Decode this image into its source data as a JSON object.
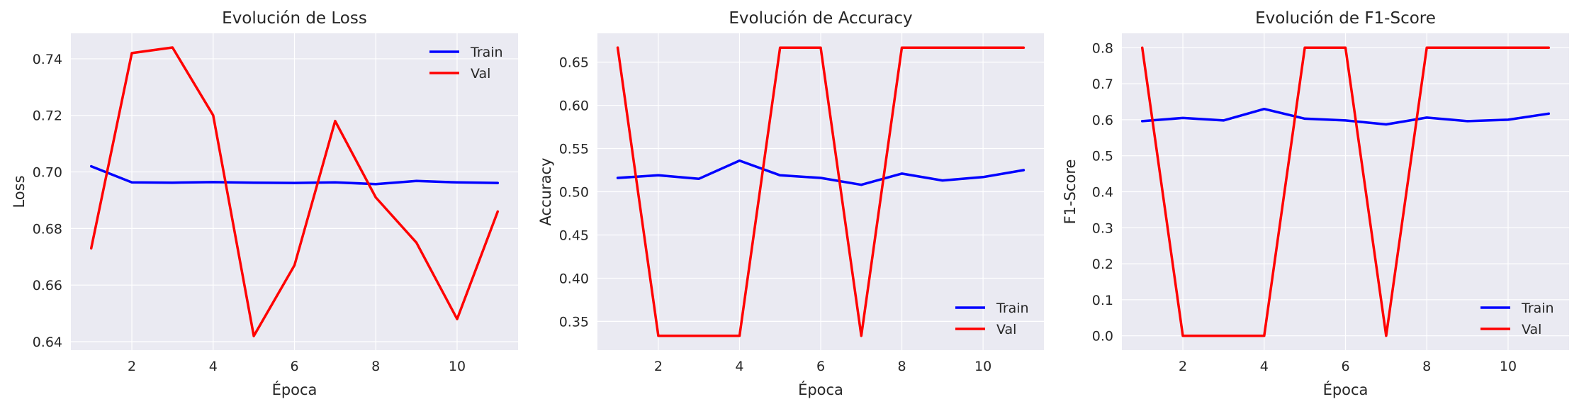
{
  "chart_data": [
    {
      "type": "line",
      "title": "Evolución de Loss",
      "xlabel": "Época",
      "ylabel": "Loss",
      "x": [
        1,
        2,
        3,
        4,
        5,
        6,
        7,
        8,
        9,
        10,
        11
      ],
      "xlim": [
        0.5,
        11.5
      ],
      "ylim": [
        0.637,
        0.749
      ],
      "xticks": [
        2,
        4,
        6,
        8,
        10
      ],
      "yticks": [
        0.64,
        0.66,
        0.68,
        0.7,
        0.72,
        0.74
      ],
      "ytick_labels": [
        "0.64",
        "0.66",
        "0.68",
        "0.70",
        "0.72",
        "0.74"
      ],
      "legend_position": "top-right",
      "grid": true,
      "series": [
        {
          "name": "Train",
          "color": "#0000ff",
          "values": [
            0.702,
            0.6963,
            0.6962,
            0.6964,
            0.6962,
            0.6961,
            0.6963,
            0.6957,
            0.6968,
            0.6963,
            0.6961
          ]
        },
        {
          "name": "Val",
          "color": "#ff0000",
          "values": [
            0.673,
            0.742,
            0.744,
            0.72,
            0.642,
            0.667,
            0.718,
            0.691,
            0.675,
            0.648,
            0.686
          ]
        }
      ]
    },
    {
      "type": "line",
      "title": "Evolución de Accuracy",
      "xlabel": "Época",
      "ylabel": "Accuracy",
      "x": [
        1,
        2,
        3,
        4,
        5,
        6,
        7,
        8,
        9,
        10,
        11
      ],
      "xlim": [
        0.5,
        11.5
      ],
      "ylim": [
        0.3167,
        0.6833
      ],
      "xticks": [
        2,
        4,
        6,
        8,
        10
      ],
      "yticks": [
        0.35,
        0.4,
        0.45,
        0.5,
        0.55,
        0.6,
        0.65
      ],
      "ytick_labels": [
        "0.35",
        "0.40",
        "0.45",
        "0.50",
        "0.55",
        "0.60",
        "0.65"
      ],
      "legend_position": "bottom-right",
      "grid": true,
      "series": [
        {
          "name": "Train",
          "color": "#0000ff",
          "values": [
            0.516,
            0.519,
            0.515,
            0.536,
            0.519,
            0.516,
            0.508,
            0.521,
            0.513,
            0.517,
            0.525
          ]
        },
        {
          "name": "Val",
          "color": "#ff0000",
          "values": [
            0.6667,
            0.3333,
            0.3333,
            0.3333,
            0.6667,
            0.6667,
            0.3333,
            0.6667,
            0.6667,
            0.6667,
            0.6667
          ]
        }
      ]
    },
    {
      "type": "line",
      "title": "Evolución de F1-Score",
      "xlabel": "Época",
      "ylabel": "F1-Score",
      "x": [
        1,
        2,
        3,
        4,
        5,
        6,
        7,
        8,
        9,
        10,
        11
      ],
      "xlim": [
        0.5,
        11.5
      ],
      "ylim": [
        -0.04,
        0.84
      ],
      "xticks": [
        2,
        4,
        6,
        8,
        10
      ],
      "yticks": [
        0.0,
        0.1,
        0.2,
        0.3,
        0.4,
        0.5,
        0.6,
        0.7,
        0.8
      ],
      "ytick_labels": [
        "0.0",
        "0.1",
        "0.2",
        "0.3",
        "0.4",
        "0.5",
        "0.6",
        "0.7",
        "0.8"
      ],
      "legend_position": "bottom-right",
      "grid": true,
      "series": [
        {
          "name": "Train",
          "color": "#0000ff",
          "values": [
            0.596,
            0.605,
            0.598,
            0.63,
            0.603,
            0.598,
            0.587,
            0.606,
            0.596,
            0.6,
            0.617
          ]
        },
        {
          "name": "Val",
          "color": "#ff0000",
          "values": [
            0.8,
            0.0,
            0.0,
            0.0,
            0.8,
            0.8,
            0.0,
            0.8,
            0.8,
            0.8,
            0.8
          ]
        }
      ]
    }
  ]
}
